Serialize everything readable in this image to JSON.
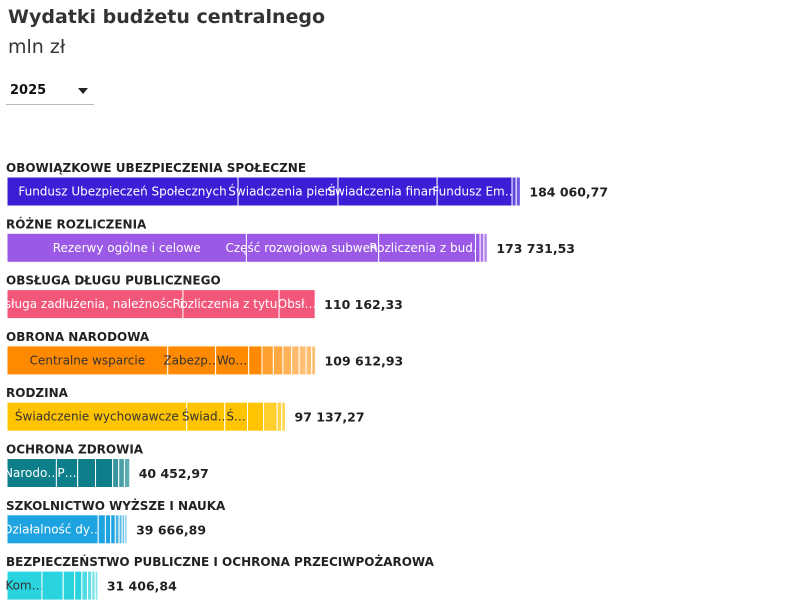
{
  "title": "Wydatki budżetu centralnego",
  "unit": "mln zł",
  "year_selector": {
    "selected": "2025",
    "icon": "chevron-down-icon"
  },
  "chart_data": {
    "type": "bar",
    "orientation": "horizontal-stacked",
    "categories": [
      {
        "name": "OBOWIĄZKOWE UBEZPIECZENIA SPOŁECZNE",
        "total": "184 060,77",
        "color": "#3b1fd6",
        "segments": [
          {
            "label": "Fundusz Ubezpieczeń Społecznych",
            "value": 60800
          },
          {
            "label": "Świadczenia pieni…",
            "value": 26300
          },
          {
            "label": "Świadczenia finan…",
            "value": 26100
          },
          {
            "label": "Fundusz Em…",
            "value": 19700
          },
          {
            "label": "",
            "value": 1100
          },
          {
            "label": "",
            "value": 1100
          }
        ]
      },
      {
        "name": "RÓŻNE ROZLICZENIA",
        "total": "173 731,53",
        "color": "#9b59e6",
        "segments": [
          {
            "label": "Rezerwy ogólne i celowe",
            "value": 63000
          },
          {
            "label": "Część rozwojowa subwencj…",
            "value": 34800
          },
          {
            "label": "Rozliczenia z bud…",
            "value": 25500
          },
          {
            "label": "",
            "value": 1200
          },
          {
            "label": "",
            "value": 1000
          },
          {
            "label": "",
            "value": 900
          }
        ]
      },
      {
        "name": "OBSŁUGA DŁUGU PUBLICZNEGO",
        "total": "110 162,33",
        "color": "#f2577a",
        "segments": [
          {
            "label": "Obsługa zadłużenia, należności i i…",
            "value": 46300
          },
          {
            "label": "Rozliczenia z tytu…",
            "value": 25300
          },
          {
            "label": "Obsł…",
            "value": 9500
          }
        ]
      },
      {
        "name": "OBRONA NARODOWA",
        "total": "109 612,93",
        "color": "#ff8a00",
        "segments": [
          {
            "label": "Centralne wsparcie",
            "value": 42300
          },
          {
            "label": "Zabezp…",
            "value": 12600
          },
          {
            "label": "Wo…",
            "value": 8700
          },
          {
            "label": "",
            "value": 3500
          },
          {
            "label": "",
            "value": 3000
          },
          {
            "label": "",
            "value": 2500
          },
          {
            "label": "",
            "value": 2300
          },
          {
            "label": "",
            "value": 2000
          },
          {
            "label": "",
            "value": 1800
          },
          {
            "label": "",
            "value": 1500
          },
          {
            "label": "",
            "value": 1000
          }
        ]
      },
      {
        "name": "RODZINA",
        "total": "97 137,27",
        "color": "#ffc400",
        "segments": [
          {
            "label": "Świadczenie wychowawcze",
            "value": 47300
          },
          {
            "label": "Świad…",
            "value": 10000
          },
          {
            "label": "Ś…",
            "value": 6000
          },
          {
            "label": "",
            "value": 4200
          },
          {
            "label": "",
            "value": 3600
          },
          {
            "label": "",
            "value": 1200
          },
          {
            "label": "",
            "value": 1000
          }
        ]
      },
      {
        "name": "OCHRONA ZDROWIA",
        "total": "40 452,97",
        "color": "#0c7f8a",
        "segments": [
          {
            "label": "Narodo…",
            "value": 13000
          },
          {
            "label": "P…",
            "value": 5600
          },
          {
            "label": "",
            "value": 4700
          },
          {
            "label": "",
            "value": 4500
          },
          {
            "label": "",
            "value": 1600
          },
          {
            "label": "",
            "value": 1500
          },
          {
            "label": "",
            "value": 1400
          }
        ]
      },
      {
        "name": "SZKOLNICTWO WYŻSZE I NAUKA",
        "total": "39 666,89",
        "color": "#1da3e0",
        "segments": [
          {
            "label": "Działalność dy…",
            "value": 24000
          },
          {
            "label": "",
            "value": 1900
          },
          {
            "label": "",
            "value": 1400
          },
          {
            "label": "",
            "value": 1200
          },
          {
            "label": "",
            "value": 1000
          },
          {
            "label": "",
            "value": 800
          },
          {
            "label": "",
            "value": 700
          },
          {
            "label": "",
            "value": 600
          }
        ]
      },
      {
        "name": "BEZPIECZEŃSTWO PUBLICZNE I OCHRONA PRZECIWPOŻAROWA",
        "total": "31 406,84",
        "color": "#2ad4de",
        "segments": [
          {
            "label": "Kom…",
            "value": 9200
          },
          {
            "label": "",
            "value": 5600
          },
          {
            "label": "",
            "value": 3000
          },
          {
            "label": "",
            "value": 1900
          },
          {
            "label": "",
            "value": 1500
          },
          {
            "label": "",
            "value": 1100
          },
          {
            "label": "",
            "value": 900
          },
          {
            "label": "",
            "value": 700
          }
        ]
      }
    ]
  }
}
